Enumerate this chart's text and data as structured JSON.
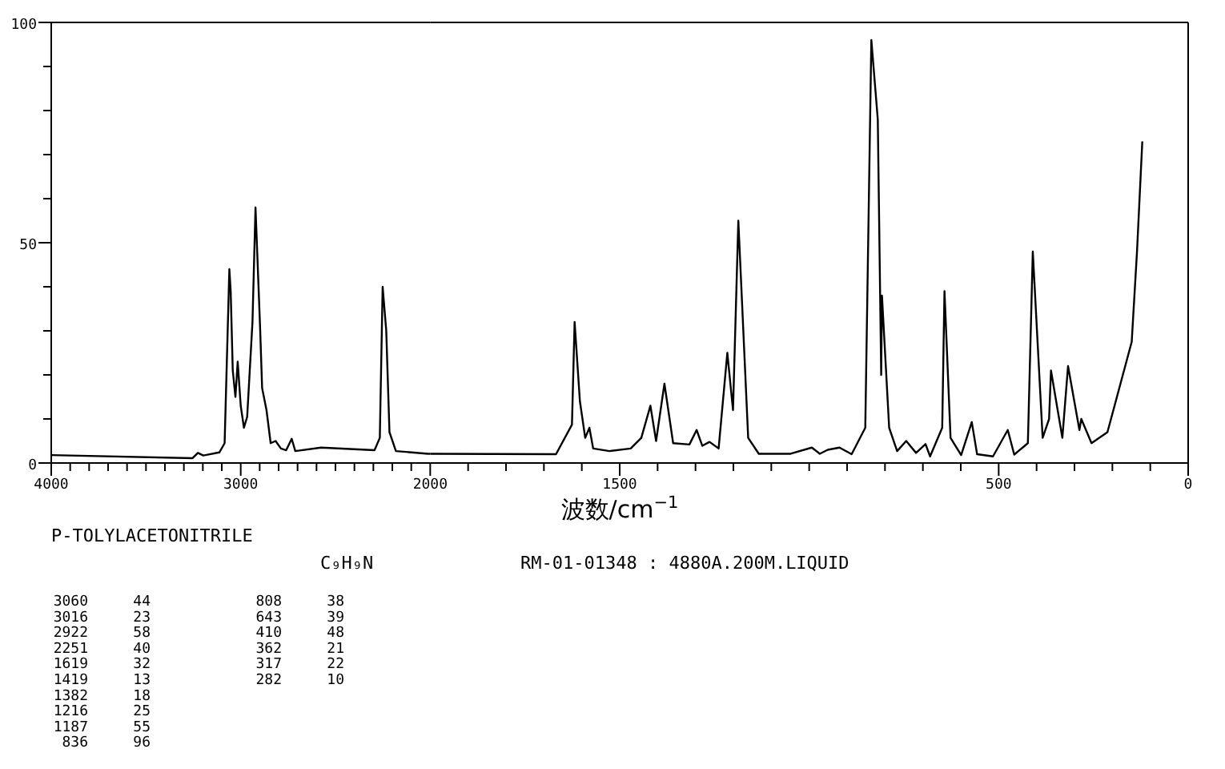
{
  "chart_data": [
    {
      "type": "line",
      "title": "P-TOLYLACETONITRILE",
      "subtitle": "C₉H₉N",
      "xlim": [
        4000,
        2000
      ],
      "ylim": [
        0,
        100
      ],
      "xticks": [
        {
          "value": 4000,
          "label": "4000"
        },
        {
          "value": 3900,
          "label": null
        },
        {
          "value": 3800,
          "label": null
        },
        {
          "value": 3700,
          "label": null
        },
        {
          "value": 3600,
          "label": null
        },
        {
          "value": 3500,
          "label": null
        },
        {
          "value": 3400,
          "label": null
        },
        {
          "value": 3300,
          "label": null
        },
        {
          "value": 3200,
          "label": null
        },
        {
          "value": 3100,
          "label": null
        },
        {
          "value": 3000,
          "label": "3000"
        },
        {
          "value": 2900,
          "label": null
        },
        {
          "value": 2800,
          "label": null
        },
        {
          "value": 2700,
          "label": null
        },
        {
          "value": 2600,
          "label": null
        },
        {
          "value": 2500,
          "label": null
        },
        {
          "value": 2400,
          "label": null
        },
        {
          "value": 2300,
          "label": null
        },
        {
          "value": 2200,
          "label": null
        },
        {
          "value": 2100,
          "label": null
        },
        {
          "value": 2000,
          "label": "2000"
        }
      ],
      "yticks": [
        0,
        {
          "value": 10,
          "label": null
        },
        {
          "value": 20,
          "label": null
        },
        {
          "value": 30,
          "label": null
        },
        {
          "value": 40,
          "label": null
        },
        50,
        {
          "value": 60,
          "label": null
        },
        {
          "value": 70,
          "label": null
        },
        {
          "value": 80,
          "label": null
        },
        {
          "value": 90,
          "label": null
        },
        100
      ],
      "annotations": [
        "RM-01-01348 : 4880A.200M.LIQUID",
        "3060 44",
        "3016 23",
        "2922 58",
        "2251 40",
        "1619 32",
        "1419 13",
        "1382 18",
        "1216 25",
        "1187 55",
        "836 96",
        "808 38",
        "643 39",
        "410 48",
        "362 21",
        "317 22",
        "282 10"
      ],
      "series": [
        {
          "color": "#000000",
          "x": [
            4000,
            3254,
            3226,
            3198,
            3113,
            3085,
            3060,
            3053,
            3042,
            3028,
            3016,
            3000,
            2983,
            2966,
            2938,
            2922,
            2898,
            2887,
            2864,
            2842,
            2816,
            2788,
            2760,
            2731,
            2712,
            2576,
            2294,
            2266,
            2251,
            2232,
            2215,
            2181,
            2011,
            2000
          ],
          "values": [
            1.8,
            1.1,
            2.3,
            1.7,
            2.4,
            4.5,
            44,
            39,
            21,
            15,
            23,
            13,
            8,
            10.5,
            32,
            58,
            31,
            17,
            12,
            4.5,
            5,
            3.3,
            2.9,
            5.5,
            2.7,
            3.5,
            2.9,
            5.7,
            40,
            30,
            7,
            2.7,
            2.1,
            2.1
          ]
        }
      ]
    },
    {
      "type": "line",
      "xlabel": "波数/cm$^{−1}$",
      "tick_labels": "x",
      "xlim": [
        2000,
        0
      ],
      "ylim": [
        0,
        100
      ],
      "xticks": [
        {
          "value": 1900,
          "label": null
        },
        {
          "value": 1800,
          "label": null
        },
        {
          "value": 1700,
          "label": null
        },
        {
          "value": 1600,
          "label": null
        },
        {
          "value": 1500,
          "label": "1500"
        },
        {
          "value": 1400,
          "label": null
        },
        {
          "value": 1300,
          "label": null
        },
        {
          "value": 1200,
          "label": null
        },
        {
          "value": 1100,
          "label": null
        },
        {
          "value": 1000,
          "label": null
        },
        {
          "value": 900,
          "label": null
        },
        {
          "value": 800,
          "label": null
        },
        {
          "value": 700,
          "label": null
        },
        {
          "value": 600,
          "label": null
        },
        {
          "value": 500,
          "label": "500"
        },
        {
          "value": 400,
          "label": null
        },
        {
          "value": 300,
          "label": null
        },
        {
          "value": 200,
          "label": null
        },
        {
          "value": 100,
          "label": null
        },
        {
          "value": 0,
          "label": "0"
        }
      ],
      "series": [
        {
          "color": "#000000",
          "x": [
            2000,
            1668,
            1626,
            1619,
            1605,
            1591,
            1580,
            1570,
            1527,
            1471,
            1443,
            1419,
            1404,
            1382,
            1359,
            1316,
            1297,
            1282,
            1263,
            1239,
            1216,
            1201,
            1187,
            1161,
            1133,
            1049,
            993,
            972,
            951,
            920,
            888,
            852,
            836,
            819,
            810,
            808,
            789,
            768,
            744,
            718,
            693,
            681,
            649,
            643,
            627,
            599,
            571,
            557,
            515,
            476,
            459,
            423,
            410,
            384,
            367,
            362,
            332,
            317,
            287,
            282,
            255,
            213,
            163,
            149,
            135,
            121
          ],
          "values": [
            2.1,
            2,
            8.7,
            32,
            14,
            5.7,
            8,
            3.3,
            2.7,
            3.3,
            5.7,
            13,
            5,
            18,
            4.5,
            4.2,
            7.5,
            3.9,
            4.8,
            3.3,
            25,
            12,
            55,
            5.7,
            2.1,
            2.1,
            3.5,
            2.1,
            3,
            3.5,
            2,
            8,
            96,
            78,
            20,
            38,
            8,
            2.7,
            5,
            2.3,
            4.3,
            1.5,
            8,
            39,
            5.7,
            1.8,
            9.3,
            2,
            1.5,
            7.5,
            1.9,
            4.5,
            48,
            5.7,
            10,
            21,
            5.7,
            22,
            7.5,
            10,
            4.5,
            7,
            23,
            27.5,
            48,
            73
          ]
        }
      ]
    }
  ]
}
